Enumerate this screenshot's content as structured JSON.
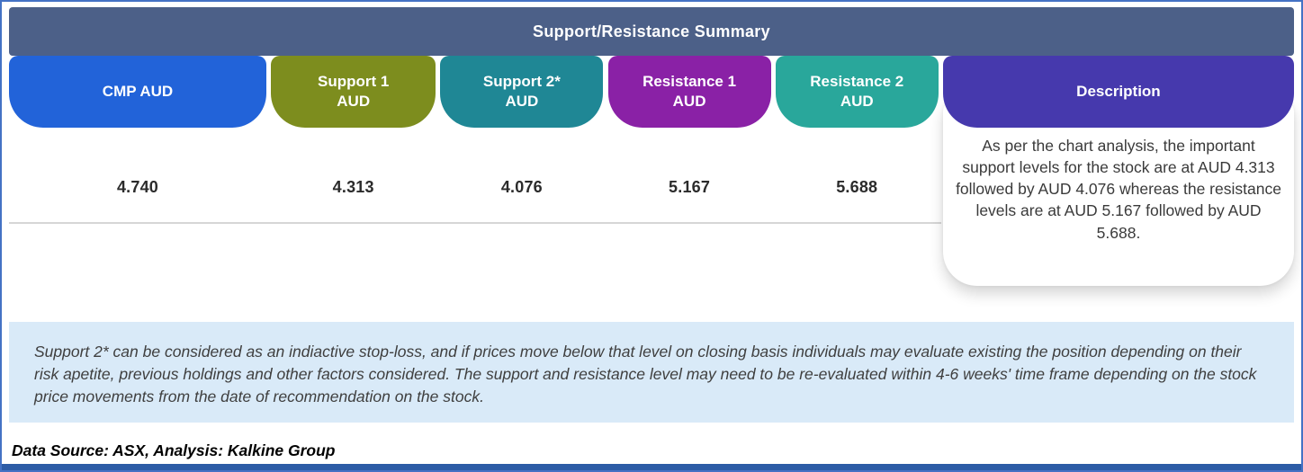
{
  "header": {
    "title": "Support/Resistance Summary"
  },
  "columns": [
    {
      "line1": "CMP AUD",
      "line2": "",
      "value": "4.740",
      "color": "#2263D9"
    },
    {
      "line1": "Support 1",
      "line2": "AUD",
      "value": "4.313",
      "color": "#7D8D1E"
    },
    {
      "line1": "Support 2*",
      "line2": "AUD",
      "value": "4.076",
      "color": "#1F8795"
    },
    {
      "line1": "Resistance 1",
      "line2": "AUD",
      "value": "5.167",
      "color": "#8A21A6"
    },
    {
      "line1": "Resistance 2",
      "line2": "AUD",
      "value": "5.688",
      "color": "#29A79B"
    }
  ],
  "description": {
    "label": "Description",
    "color": "#4639AD",
    "text": "As per the chart analysis, the important support levels for the stock are at AUD 4.313 followed by AUD 4.076 whereas the resistance levels are at AUD 5.167 followed by AUD 5.688."
  },
  "footnote": "Support 2* can be considered as an indiactive stop-loss, and if prices move below that level on closing basis individuals may evaluate existing the position depending on their risk apetite, previous holdings and other factors considered. The support and resistance level may need to be re-evaluated within 4-6 weeks' time frame depending on the stock price movements from  the date of recommendation on the stock.",
  "source_line": "Data Source: ASX, Analysis: Kalkine Group",
  "colors": {
    "title_bar": "#4C6088",
    "bottom_bar": "#2D5CA6",
    "footnote_bg": "#D9EAF8",
    "outer_border": "#4472C4"
  },
  "chart_data": {
    "type": "table",
    "title": "Support/Resistance Summary",
    "columns": [
      "CMP AUD",
      "Support 1 AUD",
      "Support 2* AUD",
      "Resistance 1 AUD",
      "Resistance 2 AUD",
      "Description"
    ],
    "rows": [
      [
        4.74,
        4.313,
        4.076,
        5.167,
        5.688,
        "As per the chart analysis, the important support levels for the stock are at AUD 4.313 followed by AUD 4.076 whereas the resistance levels are at AUD 5.167 followed by AUD 5.688."
      ]
    ]
  }
}
